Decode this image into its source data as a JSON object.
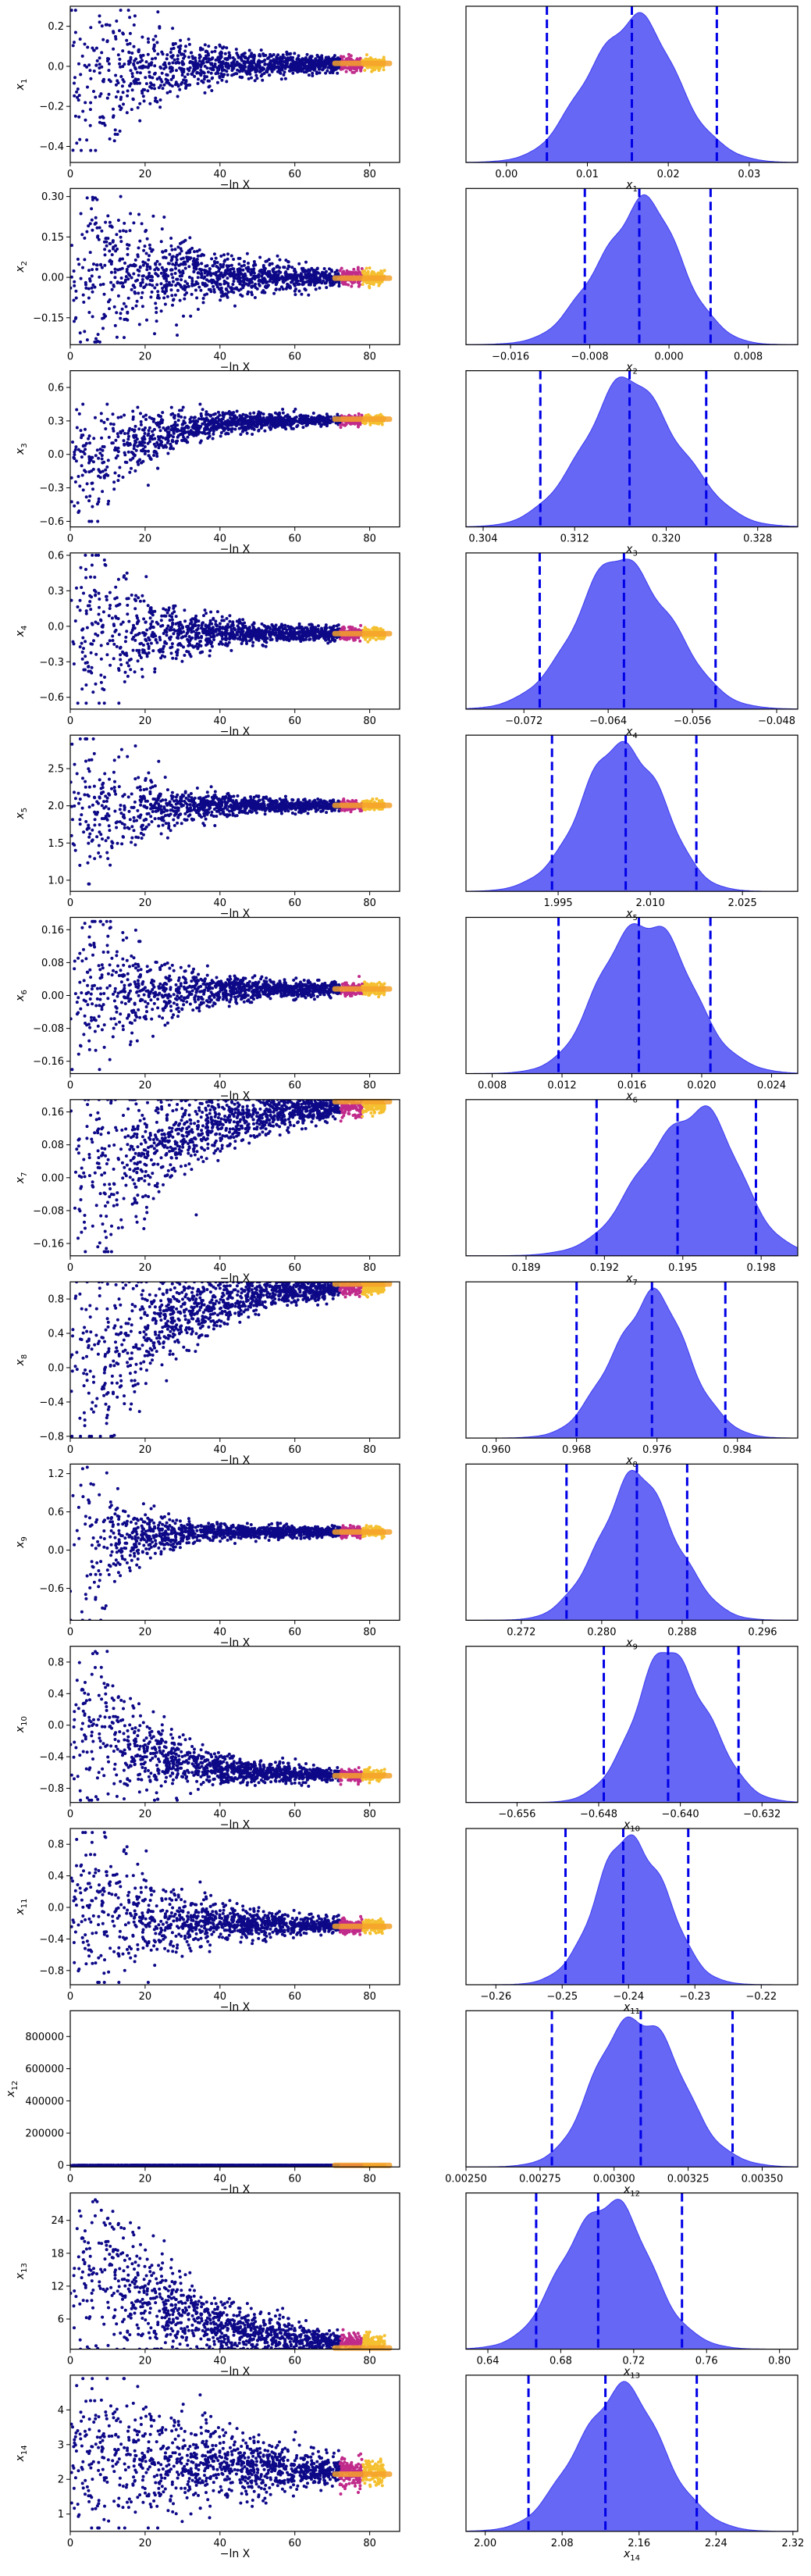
{
  "chart_data": {
    "type": "scatter",
    "x_axis_label": "−ln X",
    "x_ticks": [
      "0",
      "20",
      "40",
      "60",
      "80"
    ],
    "x_range": [
      0,
      88
    ],
    "trace_style": "dense cloud of sampled points, colour running from dark blue to yellow at large −ln X",
    "parameters": [
      {
        "name": "x",
        "sub": "1",
        "trace": {
          "yrange": [
            -0.48,
            0.3
          ],
          "yticks": [
            -0.4,
            -0.2,
            0.0,
            0.2
          ],
          "ytick_labels": [
            "−0.4",
            "−0.2",
            "0.0",
            "0.2"
          ],
          "converge": 0.015,
          "spread_lo": -0.42,
          "spread_hi": 0.28,
          "turn_over": 35
        },
        "posterior": {
          "xrange": [
            -0.005,
            0.036
          ],
          "xticks": [
            0.0,
            0.01,
            0.02,
            0.03
          ],
          "xtick_labels": [
            "0.00",
            "0.01",
            "0.02",
            "0.03"
          ],
          "mode": 0.0155,
          "sigma": 0.0055,
          "skew": 0.0,
          "q_low": 0.005,
          "q_median": 0.0155,
          "q_high": 0.026
        }
      },
      {
        "name": "x",
        "sub": "2",
        "trace": {
          "yrange": [
            -0.25,
            0.33
          ],
          "yticks": [
            -0.15,
            0.0,
            0.15,
            0.3
          ],
          "ytick_labels": [
            "−0.15",
            "0.00",
            "0.15",
            "0.30"
          ],
          "converge": -0.003,
          "spread_lo": -0.24,
          "spread_hi": 0.3,
          "turn_over": 40
        },
        "posterior": {
          "xrange": [
            -0.0205,
            0.013
          ],
          "xticks": [
            -0.016,
            -0.008,
            0.0,
            0.008
          ],
          "xtick_labels": [
            "−0.016",
            "−0.008",
            "0.000",
            "0.008"
          ],
          "mode": -0.0025,
          "sigma": 0.0042,
          "skew": -0.25,
          "q_low": -0.0085,
          "q_median": -0.003,
          "q_high": 0.0042
        }
      },
      {
        "name": "x",
        "sub": "3",
        "trace": {
          "yrange": [
            -0.65,
            0.75
          ],
          "yticks": [
            -0.6,
            -0.3,
            0.0,
            0.3,
            0.6
          ],
          "ytick_labels": [
            "−0.6",
            "−0.3",
            "0.0",
            "0.3",
            "0.6"
          ],
          "converge": 0.316,
          "spread_lo": -0.6,
          "spread_hi": 0.45,
          "turn_over": 30
        },
        "posterior": {
          "xrange": [
            0.3025,
            0.3315
          ],
          "xticks": [
            0.304,
            0.312,
            0.32,
            0.328
          ],
          "xtick_labels": [
            "0.304",
            "0.312",
            "0.320",
            "0.328"
          ],
          "mode": 0.3168,
          "sigma": 0.0042,
          "skew": 0.1,
          "q_low": 0.309,
          "q_median": 0.3168,
          "q_high": 0.3235
        }
      },
      {
        "name": "x",
        "sub": "4",
        "trace": {
          "yrange": [
            -0.7,
            0.62
          ],
          "yticks": [
            -0.6,
            -0.3,
            0.0,
            0.3,
            0.6
          ],
          "ytick_labels": [
            "−0.6",
            "−0.3",
            "0.0",
            "0.3",
            "0.6"
          ],
          "converge": -0.062,
          "spread_lo": -0.65,
          "spread_hi": 0.6,
          "turn_over": 30
        },
        "posterior": {
          "xrange": [
            -0.0775,
            -0.046
          ],
          "xticks": [
            -0.072,
            -0.064,
            -0.056,
            -0.048
          ],
          "xtick_labels": [
            "−0.072",
            "−0.064",
            "−0.056",
            "−0.048"
          ],
          "mode": -0.0625,
          "sigma": 0.0045,
          "skew": 0.0,
          "q_low": -0.0705,
          "q_median": -0.0625,
          "q_high": -0.0538
        }
      },
      {
        "name": "x",
        "sub": "5",
        "trace": {
          "yrange": [
            0.85,
            2.95
          ],
          "yticks": [
            1.0,
            1.5,
            2.0,
            2.5
          ],
          "ytick_labels": [
            "1.0",
            "1.5",
            "2.0",
            "2.5"
          ],
          "converge": 2.006,
          "spread_lo": 0.95,
          "spread_hi": 2.9,
          "turn_over": 25
        },
        "posterior": {
          "xrange": [
            1.98,
            2.034
          ],
          "xticks": [
            1.995,
            2.01,
            2.025
          ],
          "xtick_labels": [
            "1.995",
            "2.010",
            "2.025"
          ],
          "mode": 2.006,
          "sigma": 0.0065,
          "skew": -0.2,
          "q_low": 1.994,
          "q_median": 2.006,
          "q_high": 2.0175
        }
      },
      {
        "name": "x",
        "sub": "6",
        "trace": {
          "yrange": [
            -0.19,
            0.19
          ],
          "yticks": [
            -0.16,
            -0.08,
            0.0,
            0.08,
            0.16
          ],
          "ytick_labels": [
            "−0.16",
            "−0.08",
            "0.00",
            "0.08",
            "0.16"
          ],
          "converge": 0.016,
          "spread_lo": -0.18,
          "spread_hi": 0.18,
          "turn_over": 30
        },
        "posterior": {
          "xrange": [
            0.0065,
            0.0255
          ],
          "xticks": [
            0.008,
            0.012,
            0.016,
            0.02,
            0.024
          ],
          "xtick_labels": [
            "0.008",
            "0.012",
            "0.016",
            "0.020",
            "0.024"
          ],
          "mode": 0.0166,
          "sigma": 0.0025,
          "skew": 0.15,
          "q_low": 0.0118,
          "q_median": 0.0164,
          "q_high": 0.0205
        }
      },
      {
        "name": "x",
        "sub": "7",
        "trace": {
          "yrange": [
            -0.19,
            0.19
          ],
          "yticks": [
            -0.16,
            -0.08,
            0.0,
            0.08,
            0.16
          ],
          "ytick_labels": [
            "−0.16",
            "−0.08",
            "0.00",
            "0.08",
            "0.16"
          ],
          "converge": 0.185,
          "spread_lo": -0.18,
          "spread_hi": 0.19,
          "turn_over": 45
        },
        "posterior": {
          "xrange": [
            0.1867,
            0.1994
          ],
          "xticks": [
            0.189,
            0.192,
            0.195,
            0.198
          ],
          "xtick_labels": [
            "0.189",
            "0.192",
            "0.195",
            "0.198"
          ],
          "mode": 0.1955,
          "sigma": 0.0018,
          "skew": -0.3,
          "q_low": 0.1917,
          "q_median": 0.1948,
          "q_high": 0.1978
        }
      },
      {
        "name": "x",
        "sub": "8",
        "trace": {
          "yrange": [
            -0.82,
            1.0
          ],
          "yticks": [
            -0.8,
            -0.4,
            0.0,
            0.4,
            0.8
          ],
          "ytick_labels": [
            "−0.8",
            "−0.4",
            "0.0",
            "0.4",
            "0.8"
          ],
          "converge": 0.975,
          "spread_lo": -0.8,
          "spread_hi": 1.0,
          "turn_over": 40
        },
        "posterior": {
          "xrange": [
            0.957,
            0.99
          ],
          "xticks": [
            0.96,
            0.968,
            0.976,
            0.984
          ],
          "xtick_labels": [
            "0.960",
            "0.968",
            "0.976",
            "0.984"
          ],
          "mode": 0.9755,
          "sigma": 0.0038,
          "skew": -0.1,
          "q_low": 0.968,
          "q_median": 0.9755,
          "q_high": 0.9828
        }
      },
      {
        "name": "x",
        "sub": "9",
        "trace": {
          "yrange": [
            -1.1,
            1.35
          ],
          "yticks": [
            -0.6,
            0.0,
            0.6,
            1.2
          ],
          "ytick_labels": [
            "−0.6",
            "0.0",
            "0.6",
            "1.2"
          ],
          "converge": 0.284,
          "spread_lo": -1.1,
          "spread_hi": 1.3,
          "turn_over": 20
        },
        "posterior": {
          "xrange": [
            0.2665,
            0.2995
          ],
          "xticks": [
            0.272,
            0.28,
            0.288,
            0.296
          ],
          "xtick_labels": [
            "0.272",
            "0.280",
            "0.288",
            "0.296"
          ],
          "mode": 0.2835,
          "sigma": 0.0038,
          "skew": 0.05,
          "q_low": 0.2765,
          "q_median": 0.2835,
          "q_high": 0.2885
        }
      },
      {
        "name": "x",
        "sub": "10",
        "trace": {
          "yrange": [
            -0.98,
            1.0
          ],
          "yticks": [
            -0.8,
            -0.4,
            0.0,
            0.4,
            0.8
          ],
          "ytick_labels": [
            "−0.8",
            "−0.4",
            "0.0",
            "0.4",
            "0.8"
          ],
          "converge": -0.64,
          "spread_lo": -0.95,
          "spread_hi": 0.95,
          "turn_over": 30
        },
        "posterior": {
          "xrange": [
            -0.661,
            -0.6285
          ],
          "xticks": [
            -0.656,
            -0.648,
            -0.64,
            -0.632
          ],
          "xtick_labels": [
            "−0.656",
            "−0.648",
            "−0.640",
            "−0.632"
          ],
          "mode": -0.641,
          "sigma": 0.0036,
          "skew": 0.1,
          "q_low": -0.6475,
          "q_median": -0.6412,
          "q_high": -0.6343
        }
      },
      {
        "name": "x",
        "sub": "11",
        "trace": {
          "yrange": [
            -0.98,
            1.0
          ],
          "yticks": [
            -0.8,
            -0.4,
            0.0,
            0.4,
            0.8
          ],
          "ytick_labels": [
            "−0.8",
            "−0.4",
            "0.0",
            "0.4",
            "0.8"
          ],
          "converge": -0.24,
          "spread_lo": -0.95,
          "spread_hi": 0.95,
          "turn_over": 35
        },
        "posterior": {
          "xrange": [
            -0.2645,
            -0.2145
          ],
          "xticks": [
            -0.26,
            -0.25,
            -0.24,
            -0.23,
            -0.22
          ],
          "xtick_labels": [
            "−0.26",
            "−0.25",
            "−0.24",
            "−0.23",
            "−0.22"
          ],
          "mode": -0.2395,
          "sigma": 0.0052,
          "skew": 0.0,
          "q_low": -0.2495,
          "q_median": -0.2408,
          "q_high": -0.231
        }
      },
      {
        "name": "x",
        "sub": "12",
        "trace": {
          "yrange": [
            -10000,
            960000
          ],
          "yticks": [
            0,
            200000,
            400000,
            600000,
            800000
          ],
          "ytick_labels": [
            "0",
            "200000",
            "400000",
            "600000",
            "800000"
          ],
          "converge": 0.0031,
          "spread_lo": 0,
          "spread_hi": 0,
          "turn_over": 0
        },
        "posterior": {
          "xrange": [
            0.0025,
            0.00362
          ],
          "xticks": [
            0.0025,
            0.00275,
            0.003,
            0.00325,
            0.0035
          ],
          "xtick_labels": [
            "0.00250",
            "0.00275",
            "0.00300",
            "0.00325",
            "0.00350"
          ],
          "mode": 0.00307,
          "sigma": 0.00014,
          "skew": 0.2,
          "q_low": 0.00279,
          "q_median": 0.00309,
          "q_high": 0.0034
        }
      },
      {
        "name": "x",
        "sub": "13",
        "trace": {
          "yrange": [
            0.5,
            29
          ],
          "yticks": [
            6,
            12,
            18,
            24
          ],
          "ytick_labels": [
            "6",
            "12",
            "18",
            "24"
          ],
          "converge": 0.71,
          "spread_lo": 0.5,
          "spread_hi": 28,
          "turn_over": 45
        },
        "posterior": {
          "xrange": [
            0.628,
            0.81
          ],
          "xticks": [
            0.64,
            0.68,
            0.72,
            0.76,
            0.8
          ],
          "xtick_labels": [
            "0.64",
            "0.68",
            "0.72",
            "0.76",
            "0.80"
          ],
          "mode": 0.705,
          "sigma": 0.023,
          "skew": 0.0,
          "q_low": 0.6665,
          "q_median": 0.7005,
          "q_high": 0.7465
        }
      },
      {
        "name": "x",
        "sub": "14",
        "trace": {
          "yrange": [
            0.5,
            5.0
          ],
          "yticks": [
            1,
            2,
            3,
            4
          ],
          "ytick_labels": [
            "1",
            "2",
            "3",
            "4"
          ],
          "converge": 2.15,
          "spread_lo": 0.6,
          "spread_hi": 4.9,
          "turn_over": 55
        },
        "posterior": {
          "xrange": [
            1.98,
            2.325
          ],
          "xticks": [
            2.0,
            2.08,
            2.16,
            2.24,
            2.32
          ],
          "xtick_labels": [
            "2.00",
            "2.08",
            "2.16",
            "2.24",
            "2.32"
          ],
          "mode": 2.14,
          "sigma": 0.045,
          "skew": 0.0,
          "q_low": 2.045,
          "q_median": 2.125,
          "q_high": 2.22
        }
      }
    ]
  }
}
